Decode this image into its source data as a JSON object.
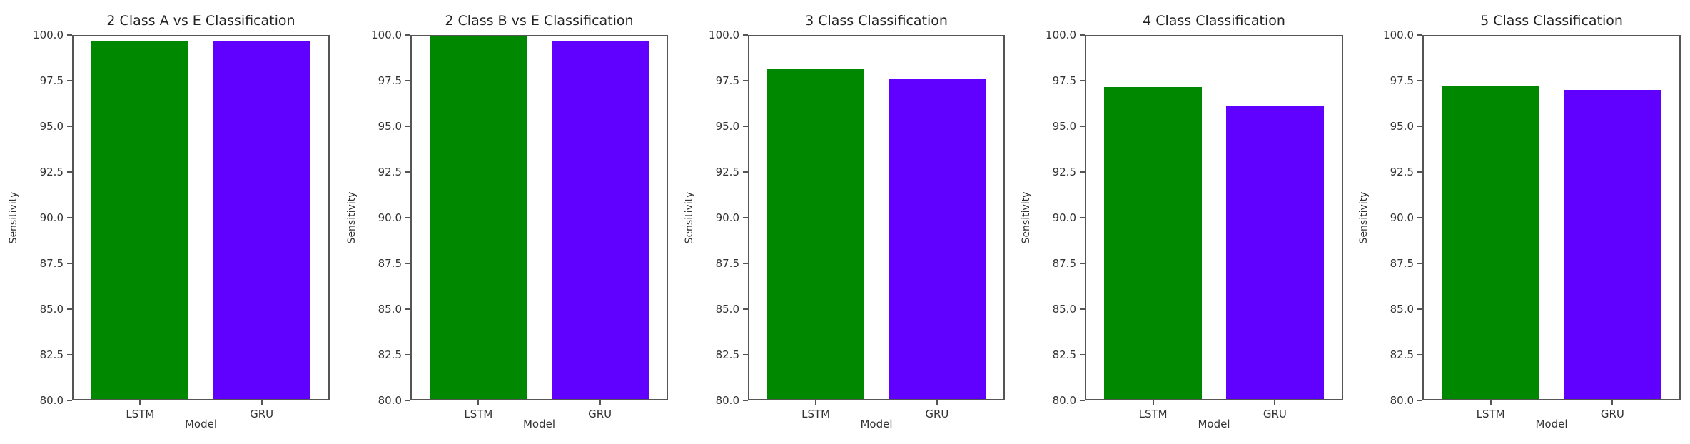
{
  "chart_data": [
    {
      "type": "bar",
      "title": "2 Class A vs E Classification",
      "categories": [
        "LSTM",
        "GRU"
      ],
      "values": [
        99.77,
        99.77
      ],
      "colors": [
        "#008800",
        "#6000ff"
      ],
      "xlabel": "Model",
      "ylabel": "Sensitivity",
      "ylim": [
        80,
        100
      ],
      "yticks": [
        "80.0",
        "82.5",
        "85.0",
        "87.5",
        "90.0",
        "92.5",
        "95.0",
        "97.5",
        "100.0"
      ],
      "grid": false
    },
    {
      "type": "bar",
      "title": "2 Class B vs E Classification",
      "categories": [
        "LSTM",
        "GRU"
      ],
      "values": [
        100.0,
        99.77
      ],
      "colors": [
        "#008800",
        "#6000ff"
      ],
      "xlabel": "Model",
      "ylabel": "Sensitivity",
      "ylim": [
        80,
        100
      ],
      "yticks": [
        "80.0",
        "82.5",
        "85.0",
        "87.5",
        "90.0",
        "92.5",
        "95.0",
        "97.5",
        "100.0"
      ],
      "grid": false
    },
    {
      "type": "bar",
      "title": "3 Class Classification",
      "categories": [
        "LSTM",
        "GRU"
      ],
      "values": [
        98.24,
        97.66
      ],
      "colors": [
        "#008800",
        "#6000ff"
      ],
      "xlabel": "Model",
      "ylabel": "Sensitivity",
      "ylim": [
        80,
        100
      ],
      "yticks": [
        "80.0",
        "82.5",
        "85.0",
        "87.5",
        "90.0",
        "92.5",
        "95.0",
        "97.5",
        "100.0"
      ],
      "grid": false
    },
    {
      "type": "bar",
      "title": "4 Class Classification",
      "categories": [
        "LSTM",
        "GRU"
      ],
      "values": [
        97.21,
        96.14
      ],
      "colors": [
        "#008800",
        "#6000ff"
      ],
      "xlabel": "Model",
      "ylabel": "Sensitivity",
      "ylim": [
        80,
        100
      ],
      "yticks": [
        "80.0",
        "82.5",
        "85.0",
        "87.5",
        "90.0",
        "92.5",
        "95.0",
        "97.5",
        "100.0"
      ],
      "grid": false
    },
    {
      "type": "bar",
      "title": "5 Class Classification",
      "categories": [
        "LSTM",
        "GRU"
      ],
      "values": [
        97.29,
        97.06
      ],
      "colors": [
        "#008800",
        "#6000ff"
      ],
      "xlabel": "Model",
      "ylabel": "Sensitivity",
      "ylim": [
        80,
        100
      ],
      "yticks": [
        "80.0",
        "82.5",
        "85.0",
        "87.5",
        "90.0",
        "92.5",
        "95.0",
        "97.5",
        "100.0"
      ],
      "grid": false
    }
  ]
}
